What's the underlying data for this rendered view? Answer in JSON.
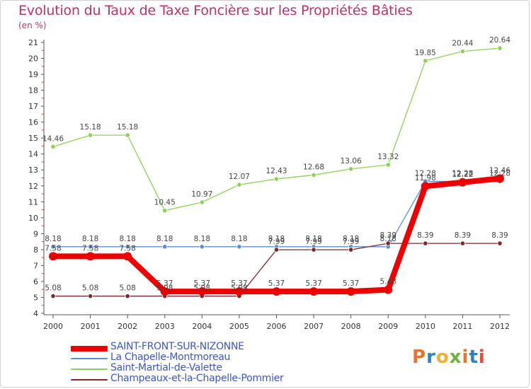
{
  "chart_data": {
    "type": "line",
    "title": "Evolution du Taux de Taxe Foncière sur les Propriétés Bâties",
    "subtitle": "(en %)",
    "xlabel": "",
    "ylabel": "",
    "x": [
      "2000",
      "2001",
      "2002",
      "2003",
      "2004",
      "2005",
      "2006",
      "2007",
      "2008",
      "2009",
      "2010",
      "2011",
      "2012"
    ],
    "ylim": [
      4,
      21
    ],
    "yticks": [
      4,
      5,
      6,
      7,
      8,
      9,
      10,
      11,
      12,
      13,
      14,
      15,
      16,
      17,
      18,
      19,
      20,
      21
    ],
    "grid": false,
    "legend_position": "bottom-left",
    "series": [
      {
        "name": "SAINT-FRONT-SUR-NIZONNE",
        "color": "#ee0000",
        "values": [
          7.58,
          7.58,
          7.58,
          5.37,
          5.37,
          5.37,
          5.37,
          5.37,
          5.37,
          5.48,
          11.98,
          12.22,
          12.46
        ],
        "labels": [
          "7.58",
          "7.58",
          "7.58",
          "5.37",
          "5.37",
          "5.37",
          "5.37",
          "5.37",
          "5.37",
          "5.48",
          "11.98",
          "12.22",
          "12.46"
        ]
      },
      {
        "name": "La Chapelle-Montmoreau",
        "color": "#5b8fd0",
        "values": [
          8.18,
          8.18,
          8.18,
          8.18,
          8.18,
          8.18,
          8.18,
          8.18,
          8.18,
          8.18,
          12.28,
          12.28,
          12.28
        ],
        "labels": [
          "8.18",
          "8.18",
          "8.18",
          "8.18",
          "8.18",
          "8.18",
          "8.18",
          "8.18",
          "8.18",
          "8.18",
          "12.28",
          "12.28",
          "12.28"
        ]
      },
      {
        "name": "Saint-Martial-de-Valette",
        "color": "#8ed157",
        "values": [
          14.46,
          15.18,
          15.18,
          10.45,
          10.97,
          12.07,
          12.43,
          12.68,
          13.06,
          13.32,
          19.85,
          20.44,
          20.64
        ],
        "labels": [
          "14.46",
          "15.18",
          "15.18",
          "10.45",
          "10.97",
          "12.07",
          "12.43",
          "12.68",
          "13.06",
          "13.32",
          "19.85",
          "20.44",
          "20.64"
        ]
      },
      {
        "name": "Champeaux-et-la-Chapelle-Pommier",
        "color": "#7a2a2a",
        "values": [
          5.08,
          5.08,
          5.08,
          5.08,
          5.08,
          5.08,
          7.99,
          7.99,
          7.99,
          8.39,
          8.39,
          8.39,
          8.39
        ],
        "labels": [
          "5.08",
          "5.08",
          "5.08",
          "5.08",
          "5.08",
          "5.08",
          "7.99",
          "7.99",
          "7.99",
          "8.39",
          "8.39",
          "8.39",
          "8.39"
        ]
      }
    ]
  },
  "logo": {
    "text": "Proxiti",
    "letters": [
      "P",
      "r",
      "o",
      "x",
      "i",
      "t",
      "i"
    ],
    "colors": [
      "#e8732a",
      "#2f7fc1",
      "#f2b02c",
      "#6cb33f",
      "#e8732a",
      "#2f7fc1",
      "#e84a3a"
    ]
  }
}
